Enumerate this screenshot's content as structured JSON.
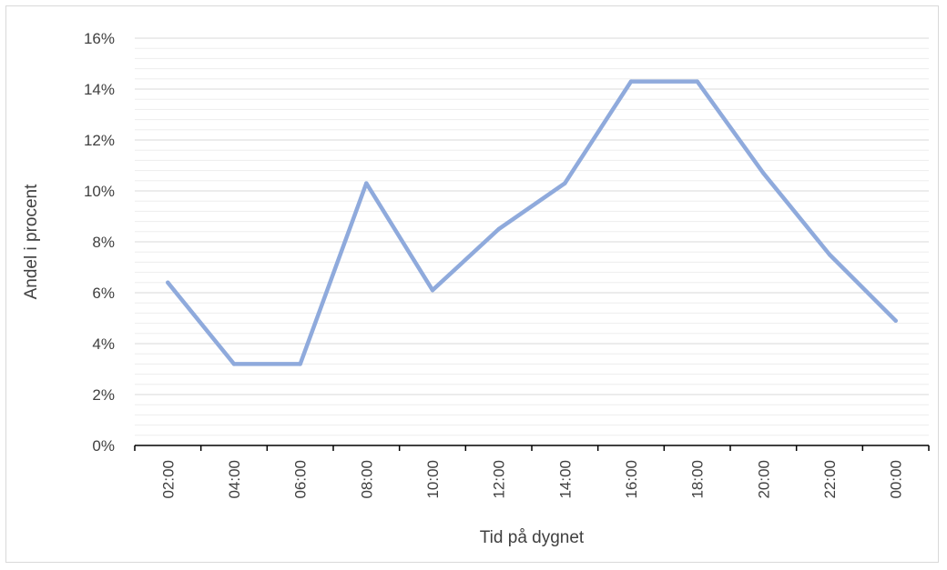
{
  "chart_data": {
    "type": "line",
    "title": "",
    "xlabel": "Tid på dygnet",
    "ylabel": "Andel i procent",
    "categories": [
      "02:00",
      "04:00",
      "06:00",
      "08:00",
      "10:00",
      "12:00",
      "14:00",
      "16:00",
      "18:00",
      "20:00",
      "22:00",
      "00:00"
    ],
    "series": [
      {
        "name": "",
        "values": [
          6.4,
          3.2,
          3.2,
          10.3,
          6.1,
          8.5,
          10.3,
          14.3,
          14.3,
          10.7,
          7.5,
          4.9
        ]
      }
    ],
    "ylim": [
      0,
      16
    ],
    "y_ticks": [
      "0%",
      "2%",
      "4%",
      "6%",
      "8%",
      "10%",
      "12%",
      "14%",
      "16%"
    ],
    "y_tick_values": [
      0,
      2,
      4,
      6,
      8,
      10,
      12,
      14,
      16
    ],
    "grid": "major and minor horizontal",
    "legend": "none",
    "colors": {
      "line": "#8faadc",
      "grid_major": "#d9d9d9",
      "grid_minor": "#ededed",
      "axis": "#000000",
      "text": "#404040"
    }
  }
}
